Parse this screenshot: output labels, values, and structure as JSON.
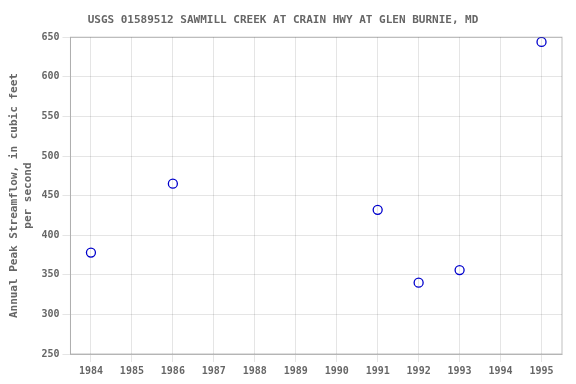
{
  "chart_data": {
    "type": "scatter",
    "title": "USGS 01589512 SAWMILL CREEK AT CRAIN HWY AT GLEN BURNIE, MD",
    "y_label": "Annual Peak Streamflow, in cubic feet\nper second",
    "x": [
      1984,
      1986,
      1991,
      1992,
      1993,
      1995
    ],
    "values": [
      378,
      465,
      432,
      340,
      356,
      644
    ],
    "color": "#0000cc",
    "marker": "circle",
    "xlim": [
      1983.5,
      1995.5
    ],
    "ylim": [
      250,
      650
    ],
    "xticks": [
      1984,
      1985,
      1986,
      1987,
      1988,
      1989,
      1990,
      1991,
      1992,
      1993,
      1994,
      1995
    ],
    "yticks": [
      250,
      300,
      350,
      400,
      450,
      500,
      550,
      600,
      650
    ],
    "grid": true
  }
}
